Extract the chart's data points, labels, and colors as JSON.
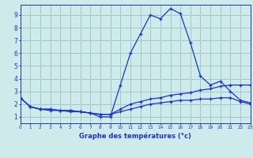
{
  "hours": [
    0,
    1,
    2,
    3,
    4,
    5,
    6,
    7,
    8,
    9,
    10,
    11,
    12,
    13,
    14,
    15,
    16,
    17,
    18,
    19,
    20,
    21,
    22,
    23
  ],
  "temp_main": [
    2.5,
    1.8,
    1.6,
    1.6,
    1.5,
    1.5,
    1.4,
    1.3,
    1.0,
    1.0,
    3.5,
    6.0,
    7.5,
    9.0,
    8.7,
    9.5,
    9.1,
    6.8,
    4.2,
    3.5,
    3.8,
    3.0,
    2.3,
    2.1
  ],
  "temp_line2": [
    2.5,
    1.8,
    1.6,
    1.6,
    1.5,
    1.5,
    1.4,
    1.3,
    1.2,
    1.2,
    1.6,
    2.0,
    2.2,
    2.4,
    2.5,
    2.7,
    2.8,
    2.9,
    3.1,
    3.2,
    3.4,
    3.5,
    3.5,
    3.5
  ],
  "temp_line3": [
    2.5,
    1.8,
    1.6,
    1.5,
    1.5,
    1.4,
    1.4,
    1.3,
    1.2,
    1.2,
    1.4,
    1.6,
    1.8,
    2.0,
    2.1,
    2.2,
    2.3,
    2.3,
    2.4,
    2.4,
    2.5,
    2.5,
    2.2,
    2.0
  ],
  "xlabel": "Graphe des températures (°c)",
  "line_color": "#1c35c8",
  "bg_color": "#ceeaea",
  "grid_color": "#a0c8c8",
  "ylim": [
    0.5,
    9.8
  ],
  "xlim": [
    0,
    23
  ],
  "yticks": [
    1,
    2,
    3,
    4,
    5,
    6,
    7,
    8,
    9
  ],
  "xticks": [
    0,
    1,
    2,
    3,
    4,
    5,
    6,
    7,
    8,
    9,
    10,
    11,
    12,
    13,
    14,
    15,
    16,
    17,
    18,
    19,
    20,
    21,
    22,
    23
  ]
}
